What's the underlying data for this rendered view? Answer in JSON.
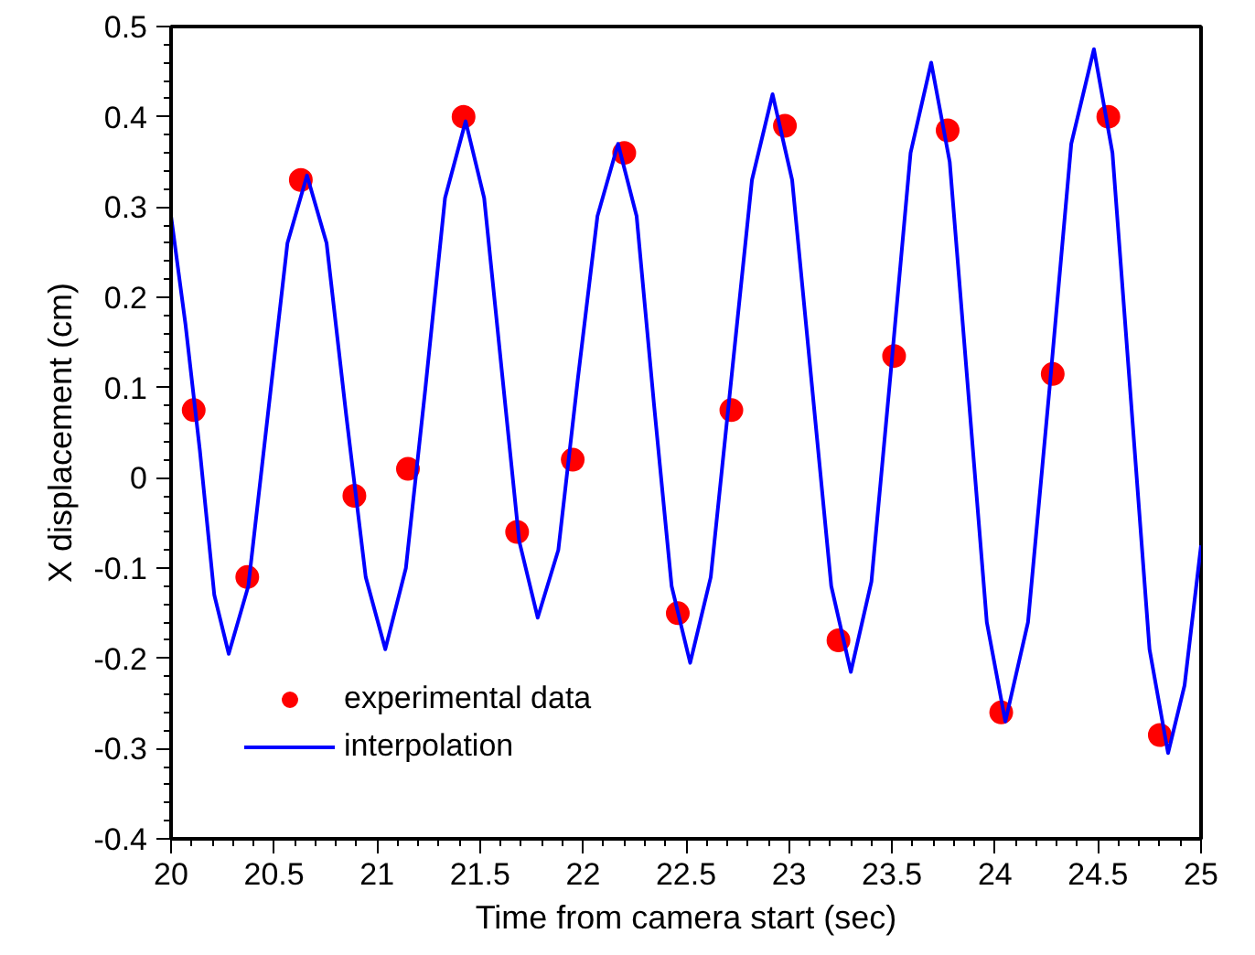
{
  "chart_data": {
    "type": "line",
    "xlabel": "Time from camera start (sec)",
    "ylabel": "X displacement (cm)",
    "xlim": [
      20,
      25
    ],
    "ylim": [
      -0.4,
      0.5
    ],
    "xticks": [
      20,
      20.5,
      21,
      21.5,
      22,
      22.5,
      23,
      23.5,
      24,
      24.5,
      25
    ],
    "yticks": [
      -0.4,
      -0.3,
      -0.2,
      -0.1,
      0,
      0.1,
      0.2,
      0.3,
      0.4,
      0.5
    ],
    "grid": false,
    "legend": "bottom left",
    "series": [
      {
        "name": "experimental data",
        "type": "scatter",
        "marker": "circle",
        "color": "#ff0000",
        "x": [
          20.11,
          20.37,
          20.63,
          20.89,
          21.15,
          21.42,
          21.68,
          21.95,
          22.2,
          22.46,
          22.72,
          22.98,
          23.24,
          23.51,
          23.77,
          24.03,
          24.28,
          24.55,
          24.8
        ],
        "values": [
          0.075,
          -0.11,
          0.33,
          -0.02,
          0.01,
          0.4,
          -0.06,
          0.02,
          0.36,
          -0.15,
          0.075,
          0.39,
          -0.18,
          0.135,
          0.385,
          -0.26,
          0.115,
          0.4,
          -0.285
        ]
      },
      {
        "name": "interpolation",
        "line_style": "solid",
        "color": "#0000ff",
        "x": [
          20.0,
          20.07,
          20.14,
          20.21,
          20.28,
          20.375,
          20.47,
          20.565,
          20.66,
          20.755,
          20.85,
          20.945,
          21.04,
          21.14,
          21.235,
          21.33,
          21.43,
          21.52,
          21.605,
          21.69,
          21.78,
          21.88,
          21.975,
          22.07,
          22.17,
          22.26,
          22.345,
          22.43,
          22.52,
          22.62,
          22.72,
          22.82,
          22.92,
          23.015,
          23.11,
          23.205,
          23.3,
          23.4,
          23.495,
          23.59,
          23.69,
          23.78,
          23.87,
          23.96,
          24.05,
          24.16,
          24.265,
          24.37,
          24.48,
          24.57,
          24.66,
          24.75,
          24.84,
          24.92,
          25.0
        ],
        "values": [
          0.29,
          0.17,
          0.03,
          -0.13,
          -0.195,
          -0.12,
          0.07,
          0.26,
          0.335,
          0.26,
          0.07,
          -0.11,
          -0.19,
          -0.1,
          0.1,
          0.31,
          0.395,
          0.31,
          0.12,
          -0.07,
          -0.155,
          -0.08,
          0.11,
          0.29,
          0.37,
          0.29,
          0.08,
          -0.12,
          -0.205,
          -0.11,
          0.11,
          0.33,
          0.425,
          0.33,
          0.105,
          -0.12,
          -0.215,
          -0.115,
          0.12,
          0.36,
          0.46,
          0.35,
          0.095,
          -0.16,
          -0.27,
          -0.16,
          0.1,
          0.37,
          0.475,
          0.36,
          0.085,
          -0.19,
          -0.305,
          -0.23,
          -0.075
        ]
      }
    ]
  }
}
